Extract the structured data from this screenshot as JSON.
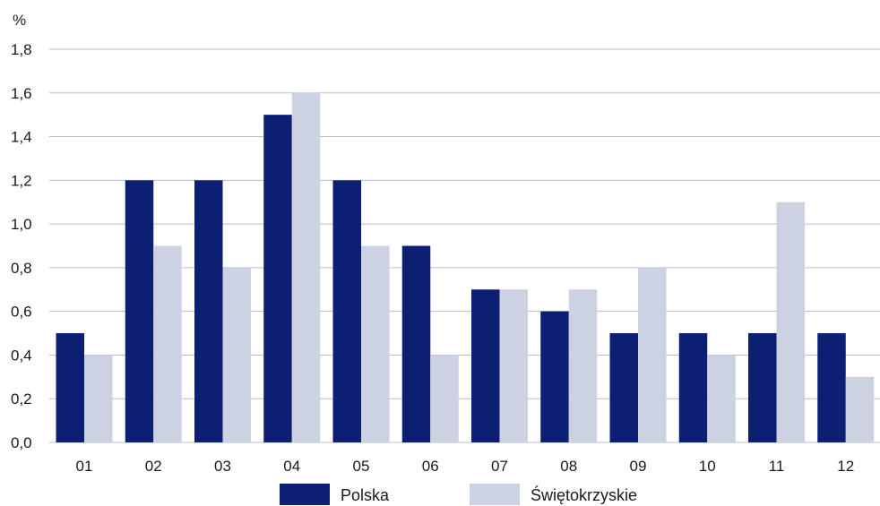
{
  "chart_data": {
    "type": "bar",
    "y_unit_label": "%",
    "categories": [
      "01",
      "02",
      "03",
      "04",
      "05",
      "06",
      "07",
      "08",
      "09",
      "10",
      "11",
      "12"
    ],
    "series": [
      {
        "name": "Polska",
        "color": "#0d1f73",
        "values": [
          0.5,
          1.2,
          1.2,
          1.5,
          1.2,
          0.9,
          0.7,
          0.6,
          0.5,
          0.5,
          0.5,
          0.5
        ]
      },
      {
        "name": "Świętokrzyskie",
        "color": "#cdd2e3",
        "values": [
          0.4,
          0.9,
          0.8,
          1.6,
          0.9,
          0.4,
          0.7,
          0.7,
          0.8,
          0.4,
          1.1,
          0.3
        ]
      }
    ],
    "ylim": [
      0,
      1.8
    ],
    "yticks": [
      "0,0",
      "0,2",
      "0,4",
      "0,6",
      "0,8",
      "1,0",
      "1,2",
      "1,4",
      "1,6",
      "1,8"
    ],
    "grid": true,
    "legend_position": "bottom",
    "gridline_color": "#b8bcc9"
  }
}
